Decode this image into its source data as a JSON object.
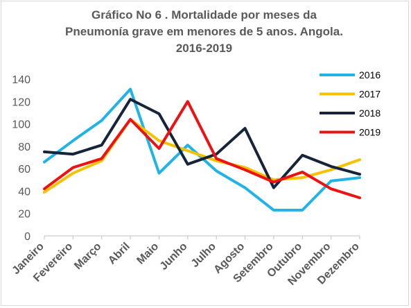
{
  "chart_data": {
    "type": "line",
    "title_lines": [
      "Gráfico No 6 . Mortalidade por meses da",
      "Pneumonía grave em menores de 5 anos. Angola.",
      "2016-2019"
    ],
    "categories": [
      "Janeiro",
      "Fevereiro",
      "Março",
      "Abril",
      "Maio",
      "Junho",
      "Julho",
      "Agosto",
      "Setembro",
      "Outubro",
      "Novembro",
      "Dezembro"
    ],
    "ylim": [
      0,
      140
    ],
    "yticks": [
      0,
      20,
      40,
      60,
      80,
      100,
      120,
      140
    ],
    "grid": false,
    "legend_position": "top-right",
    "series": [
      {
        "name": "2016",
        "color": "#1fb3e6",
        "values": [
          66,
          85,
          103,
          131,
          56,
          81,
          58,
          43,
          23,
          23,
          49,
          52
        ]
      },
      {
        "name": "2017",
        "color": "#f5c100",
        "values": [
          39,
          56,
          67,
          104,
          85,
          76,
          67,
          61,
          50,
          52,
          59,
          68
        ]
      },
      {
        "name": "2018",
        "color": "#15243a",
        "values": [
          75,
          73,
          81,
          122,
          109,
          64,
          73,
          96,
          43,
          72,
          62,
          55
        ]
      },
      {
        "name": "2019",
        "color": "#ee1111",
        "values": [
          42,
          61,
          69,
          104,
          78,
          120,
          69,
          59,
          48,
          57,
          42,
          34
        ]
      }
    ]
  }
}
